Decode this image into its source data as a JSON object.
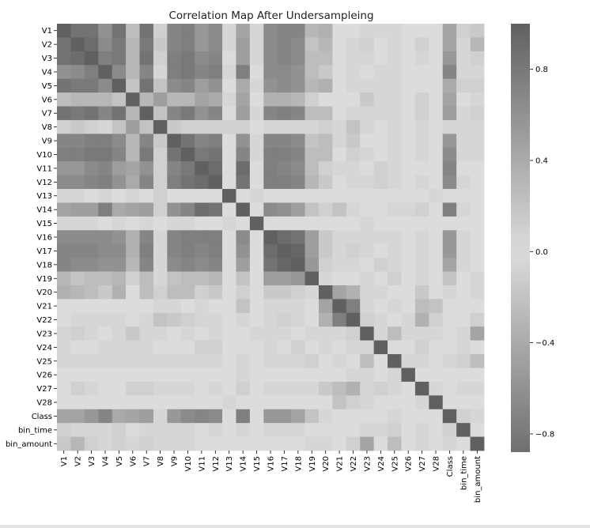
{
  "chart_data": {
    "type": "heatmap",
    "title": "Correlation Map After Undersampleing",
    "labels": [
      "V1",
      "V2",
      "V3",
      "V4",
      "V5",
      "V6",
      "V7",
      "V8",
      "V9",
      "V10",
      "V11",
      "V12",
      "V13",
      "V14",
      "V15",
      "V16",
      "V17",
      "V18",
      "V19",
      "V20",
      "V21",
      "V22",
      "V23",
      "V24",
      "V25",
      "V26",
      "V27",
      "V28",
      "Class",
      "bin_time",
      "bin_amount"
    ],
    "values": [
      [
        1.0,
        0.85,
        0.85,
        -0.6,
        0.85,
        0.25,
        0.85,
        -0.1,
        0.7,
        0.75,
        -0.55,
        0.65,
        -0.05,
        -0.45,
        0.05,
        0.65,
        0.7,
        0.7,
        -0.3,
        -0.35,
        0.0,
        0.0,
        0.05,
        0.05,
        -0.05,
        0.0,
        0.0,
        0.0,
        -0.45,
        0.1,
        -0.15
      ],
      [
        0.85,
        1.0,
        0.9,
        -0.65,
        0.8,
        0.3,
        0.8,
        -0.15,
        0.7,
        0.75,
        -0.55,
        0.65,
        -0.05,
        -0.5,
        0.05,
        0.65,
        0.7,
        0.65,
        -0.2,
        -0.3,
        0.0,
        -0.05,
        0.1,
        0.0,
        -0.05,
        0.0,
        -0.1,
        0.0,
        -0.45,
        0.05,
        -0.3
      ],
      [
        0.85,
        0.9,
        1.0,
        -0.75,
        0.8,
        0.3,
        0.85,
        -0.1,
        0.75,
        0.8,
        -0.65,
        0.7,
        0.0,
        -0.5,
        0.05,
        0.65,
        0.7,
        0.65,
        -0.25,
        -0.25,
        0.0,
        -0.05,
        0.05,
        0.0,
        -0.05,
        0.0,
        -0.05,
        0.0,
        -0.55,
        0.05,
        -0.1
      ],
      [
        -0.6,
        -0.65,
        -0.75,
        1.0,
        -0.65,
        -0.3,
        -0.7,
        0.05,
        -0.75,
        -0.8,
        0.7,
        -0.75,
        0.05,
        -0.75,
        0.0,
        -0.65,
        -0.65,
        -0.6,
        0.25,
        0.15,
        0.0,
        0.05,
        0.0,
        -0.05,
        0.05,
        0.0,
        0.0,
        0.0,
        0.7,
        -0.05,
        0.05
      ],
      [
        0.85,
        0.8,
        0.8,
        -0.65,
        1.0,
        0.2,
        0.85,
        -0.2,
        0.65,
        0.7,
        -0.5,
        0.6,
        0.0,
        -0.4,
        0.05,
        0.6,
        0.65,
        0.6,
        -0.3,
        -0.35,
        0.0,
        0.05,
        0.05,
        0.05,
        -0.05,
        0.0,
        0.0,
        0.0,
        -0.4,
        0.1,
        -0.1
      ],
      [
        0.25,
        0.3,
        0.3,
        -0.3,
        0.2,
        1.0,
        0.3,
        -0.5,
        0.3,
        0.3,
        -0.45,
        0.4,
        -0.05,
        -0.45,
        0.0,
        0.35,
        0.35,
        0.3,
        -0.1,
        0.0,
        0.0,
        0.0,
        -0.15,
        0.05,
        0.05,
        0.0,
        -0.1,
        0.0,
        -0.45,
        0.0,
        0.05
      ],
      [
        0.85,
        0.8,
        0.85,
        -0.7,
        0.85,
        0.3,
        1.0,
        -0.2,
        0.7,
        0.8,
        -0.6,
        0.7,
        0.0,
        -0.5,
        0.05,
        0.7,
        0.75,
        0.7,
        -0.25,
        -0.25,
        0.0,
        0.05,
        0.05,
        0.05,
        -0.05,
        0.0,
        -0.1,
        0.0,
        -0.5,
        0.05,
        -0.1
      ],
      [
        -0.1,
        -0.15,
        -0.1,
        0.05,
        -0.2,
        -0.5,
        -0.2,
        1.0,
        -0.15,
        -0.1,
        0.1,
        -0.1,
        -0.1,
        0.1,
        0.0,
        -0.05,
        -0.05,
        -0.05,
        -0.05,
        0.1,
        -0.05,
        -0.2,
        0.05,
        0.0,
        -0.05,
        0.0,
        0.05,
        0.0,
        0.05,
        -0.05,
        0.05
      ],
      [
        0.7,
        0.7,
        0.75,
        -0.75,
        0.65,
        0.3,
        0.7,
        -0.15,
        1.0,
        0.85,
        -0.7,
        0.75,
        0.0,
        -0.6,
        0.05,
        0.7,
        0.7,
        0.65,
        -0.2,
        -0.25,
        0.05,
        -0.15,
        0.0,
        0.0,
        -0.05,
        0.0,
        -0.05,
        0.0,
        -0.55,
        0.05,
        -0.05
      ],
      [
        0.75,
        0.75,
        0.8,
        -0.8,
        0.7,
        0.3,
        0.8,
        -0.1,
        0.85,
        1.0,
        -0.8,
        0.85,
        0.0,
        -0.7,
        0.05,
        0.75,
        0.75,
        0.7,
        -0.25,
        -0.25,
        0.0,
        -0.1,
        0.05,
        0.0,
        -0.05,
        0.0,
        -0.05,
        0.0,
        -0.65,
        0.05,
        -0.05
      ],
      [
        -0.55,
        -0.55,
        -0.65,
        0.7,
        -0.5,
        -0.45,
        -0.6,
        0.1,
        -0.7,
        -0.8,
        1.0,
        -0.9,
        0.0,
        0.9,
        0.0,
        -0.75,
        -0.7,
        -0.65,
        0.25,
        0.1,
        0.05,
        0.05,
        0.0,
        0.1,
        0.05,
        0.0,
        0.0,
        0.0,
        0.7,
        0.0,
        0.0
      ],
      [
        0.65,
        0.65,
        0.7,
        -0.75,
        0.6,
        0.4,
        0.7,
        -0.1,
        0.75,
        0.85,
        -0.9,
        1.0,
        0.0,
        -0.85,
        0.0,
        0.75,
        0.75,
        0.7,
        -0.3,
        -0.15,
        0.0,
        -0.05,
        0.05,
        -0.1,
        -0.05,
        0.0,
        -0.05,
        0.0,
        -0.65,
        0.05,
        0.0
      ],
      [
        -0.05,
        -0.05,
        0.0,
        0.05,
        0.0,
        -0.05,
        0.0,
        -0.1,
        0.0,
        0.0,
        0.0,
        0.0,
        1.0,
        0.0,
        0.05,
        0.0,
        0.0,
        0.0,
        0.0,
        0.0,
        0.0,
        0.0,
        0.0,
        0.0,
        0.0,
        0.0,
        0.0,
        0.05,
        0.0,
        0.0,
        0.0
      ],
      [
        -0.45,
        -0.5,
        -0.5,
        -0.75,
        -0.4,
        -0.45,
        -0.5,
        0.1,
        -0.6,
        -0.7,
        0.9,
        -0.85,
        0.0,
        1.0,
        0.0,
        -0.65,
        -0.6,
        -0.5,
        -0.2,
        0.1,
        -0.2,
        0.05,
        0.0,
        0.0,
        0.05,
        -0.05,
        -0.1,
        0.0,
        -0.75,
        0.05,
        0.0
      ],
      [
        0.05,
        0.05,
        0.05,
        0.0,
        0.05,
        0.0,
        0.05,
        0.0,
        0.05,
        0.05,
        0.0,
        0.0,
        0.05,
        0.0,
        1.0,
        0.0,
        0.0,
        0.0,
        0.0,
        0.0,
        0.0,
        0.0,
        0.05,
        0.0,
        0.0,
        0.0,
        0.0,
        0.0,
        0.0,
        0.0,
        0.0
      ],
      [
        0.65,
        0.65,
        0.65,
        -0.65,
        0.6,
        0.35,
        0.7,
        -0.05,
        0.7,
        0.75,
        -0.75,
        0.75,
        0.0,
        -0.65,
        0.0,
        1.0,
        0.9,
        0.85,
        -0.5,
        -0.15,
        -0.05,
        -0.05,
        0.05,
        0.05,
        -0.05,
        0.0,
        -0.05,
        0.0,
        -0.55,
        0.05,
        0.0
      ],
      [
        0.7,
        0.7,
        0.7,
        -0.65,
        0.65,
        0.35,
        0.75,
        -0.05,
        0.7,
        0.75,
        -0.7,
        0.75,
        0.0,
        -0.6,
        0.0,
        0.9,
        1.0,
        0.95,
        -0.5,
        -0.15,
        -0.05,
        -0.1,
        0.05,
        0.0,
        -0.05,
        0.0,
        -0.05,
        0.0,
        -0.55,
        0.05,
        0.0
      ],
      [
        0.7,
        0.65,
        0.65,
        -0.6,
        0.6,
        0.3,
        0.7,
        -0.05,
        0.65,
        0.7,
        -0.65,
        0.7,
        0.0,
        -0.5,
        0.0,
        0.85,
        0.95,
        1.0,
        -0.55,
        -0.1,
        0.05,
        -0.05,
        0.0,
        -0.1,
        -0.05,
        0.0,
        -0.05,
        0.0,
        -0.45,
        0.05,
        0.0
      ],
      [
        -0.3,
        -0.2,
        -0.25,
        0.25,
        -0.3,
        -0.1,
        -0.25,
        -0.05,
        -0.2,
        -0.25,
        0.25,
        -0.3,
        0.0,
        -0.2,
        0.0,
        -0.5,
        -0.5,
        -0.55,
        1.0,
        0.05,
        0.0,
        0.0,
        0.05,
        0.0,
        0.1,
        0.0,
        0.05,
        0.0,
        0.2,
        0.0,
        0.05
      ],
      [
        -0.35,
        -0.3,
        -0.25,
        0.15,
        -0.35,
        0.0,
        -0.25,
        0.1,
        -0.25,
        -0.25,
        0.1,
        -0.15,
        0.0,
        0.1,
        0.0,
        -0.15,
        -0.15,
        -0.1,
        0.05,
        1.0,
        0.45,
        0.35,
        0.05,
        0.05,
        0.0,
        0.0,
        0.15,
        0.0,
        0.05,
        0.0,
        0.05
      ],
      [
        0.0,
        0.0,
        0.0,
        0.0,
        0.0,
        0.0,
        0.0,
        -0.05,
        0.05,
        0.0,
        0.05,
        0.0,
        0.0,
        -0.2,
        0.0,
        -0.05,
        -0.05,
        0.05,
        0.0,
        0.45,
        1.0,
        0.75,
        0.05,
        0.0,
        0.05,
        0.0,
        0.25,
        0.2,
        0.0,
        0.0,
        0.0
      ],
      [
        0.0,
        -0.05,
        -0.05,
        0.05,
        0.05,
        0.0,
        0.05,
        -0.2,
        -0.15,
        -0.1,
        0.05,
        -0.05,
        0.0,
        0.05,
        0.0,
        -0.05,
        -0.1,
        -0.05,
        0.0,
        0.35,
        0.75,
        1.0,
        0.1,
        0.05,
        0.0,
        0.05,
        0.35,
        0.1,
        0.0,
        0.0,
        -0.1
      ],
      [
        0.05,
        0.1,
        0.05,
        0.0,
        0.05,
        -0.15,
        0.05,
        0.05,
        0.0,
        0.05,
        0.0,
        0.05,
        0.0,
        0.0,
        0.05,
        0.05,
        0.05,
        0.0,
        0.05,
        0.05,
        0.05,
        0.1,
        1.0,
        0.05,
        0.25,
        0.05,
        0.05,
        0.05,
        0.0,
        0.05,
        -0.45
      ],
      [
        0.05,
        0.0,
        0.0,
        -0.05,
        0.05,
        0.05,
        0.05,
        0.0,
        0.0,
        0.0,
        0.1,
        -0.1,
        0.0,
        0.0,
        0.0,
        0.05,
        0.0,
        -0.1,
        0.0,
        0.05,
        0.0,
        0.05,
        0.05,
        1.0,
        0.0,
        0.0,
        0.1,
        0.0,
        0.0,
        0.05,
        0.0
      ],
      [
        -0.05,
        -0.05,
        -0.05,
        0.05,
        -0.05,
        0.05,
        -0.05,
        -0.05,
        -0.05,
        -0.05,
        0.05,
        -0.05,
        0.0,
        0.05,
        0.0,
        -0.05,
        -0.05,
        -0.05,
        0.1,
        0.0,
        0.05,
        0.0,
        0.25,
        0.0,
        1.0,
        0.05,
        0.05,
        0.0,
        0.05,
        -0.1,
        -0.25
      ],
      [
        0.0,
        0.0,
        0.0,
        0.0,
        0.0,
        0.0,
        0.0,
        0.0,
        0.0,
        0.0,
        0.0,
        0.0,
        0.0,
        -0.05,
        0.0,
        0.0,
        0.0,
        0.0,
        0.0,
        0.0,
        0.0,
        0.05,
        0.05,
        0.0,
        0.05,
        1.0,
        0.0,
        0.0,
        0.0,
        0.0,
        0.0
      ],
      [
        0.0,
        -0.1,
        -0.05,
        0.0,
        0.0,
        -0.1,
        -0.1,
        0.05,
        -0.05,
        -0.05,
        0.0,
        -0.05,
        0.0,
        -0.1,
        0.0,
        -0.05,
        -0.05,
        -0.05,
        0.05,
        0.15,
        0.25,
        0.35,
        0.05,
        0.1,
        0.05,
        0.0,
        1.0,
        0.05,
        0.0,
        0.05,
        -0.05
      ],
      [
        0.0,
        0.0,
        0.0,
        0.0,
        0.0,
        0.0,
        0.0,
        0.0,
        0.0,
        0.0,
        0.0,
        0.0,
        0.05,
        0.0,
        0.0,
        0.0,
        0.0,
        0.0,
        0.0,
        0.0,
        0.2,
        0.1,
        0.05,
        0.0,
        0.0,
        0.0,
        0.05,
        1.0,
        0.0,
        0.0,
        0.0
      ],
      [
        -0.45,
        -0.45,
        -0.55,
        0.7,
        -0.4,
        -0.45,
        -0.5,
        0.05,
        -0.55,
        -0.65,
        0.7,
        -0.65,
        0.0,
        -0.75,
        0.0,
        -0.55,
        -0.55,
        -0.45,
        0.2,
        0.05,
        0.0,
        0.0,
        0.0,
        0.0,
        0.05,
        0.0,
        0.0,
        0.0,
        1.0,
        -0.1,
        0.05
      ],
      [
        0.1,
        0.05,
        0.05,
        -0.05,
        0.1,
        0.0,
        0.05,
        -0.05,
        0.05,
        0.05,
        0.0,
        0.05,
        0.0,
        0.05,
        0.0,
        0.05,
        0.05,
        0.05,
        0.0,
        0.0,
        0.0,
        0.0,
        0.05,
        0.05,
        -0.1,
        0.0,
        0.05,
        0.0,
        -0.1,
        1.0,
        0.0
      ],
      [
        -0.15,
        -0.3,
        -0.1,
        0.05,
        -0.1,
        0.05,
        -0.1,
        0.05,
        -0.05,
        -0.05,
        0.0,
        0.0,
        0.0,
        0.0,
        0.0,
        0.0,
        0.0,
        0.0,
        0.05,
        0.05,
        0.0,
        -0.1,
        -0.45,
        0.0,
        -0.25,
        0.0,
        -0.05,
        0.0,
        0.05,
        0.0,
        1.0
      ]
    ],
    "colorbar": {
      "ticks": [
        0.8,
        0.4,
        0.0,
        -0.4,
        -0.8
      ],
      "tick_labels": [
        "0.8",
        "0.4",
        "0.0",
        "−0.4",
        "−0.8"
      ],
      "vmin": -0.88,
      "vmax": 1.0
    },
    "colormap": {
      "extreme": "#606060",
      "center": "#dcdcdc"
    },
    "xlabel": "",
    "ylabel": "",
    "grid": false
  }
}
